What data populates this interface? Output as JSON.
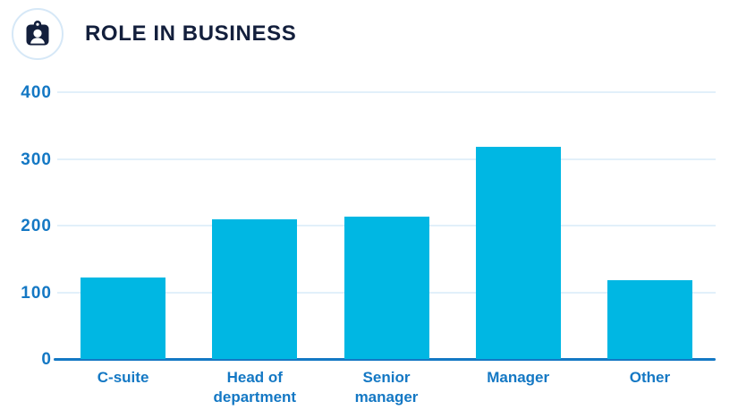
{
  "header": {
    "title": "ROLE IN BUSINESS",
    "icon": "id-badge-icon"
  },
  "colors": {
    "bar": "#00b7e3",
    "axis": "#1478c4",
    "gridline": "#e2f0fa",
    "title": "#131f3c",
    "icon_ring": "#d6e8f7",
    "icon": "#131f3c"
  },
  "chart_data": {
    "type": "bar",
    "title": "ROLE IN BUSINESS",
    "categories": [
      "C-suite",
      "Head of\ndepartment",
      "Senior\nmanager",
      "Manager",
      "Other"
    ],
    "values": [
      122,
      210,
      214,
      318,
      118
    ],
    "xlabel": "",
    "ylabel": "",
    "ylim": [
      0,
      400
    ],
    "yticks": [
      0,
      100,
      200,
      300,
      400
    ],
    "grid": true,
    "legend": "none",
    "bar_color": "#00b7e3"
  }
}
